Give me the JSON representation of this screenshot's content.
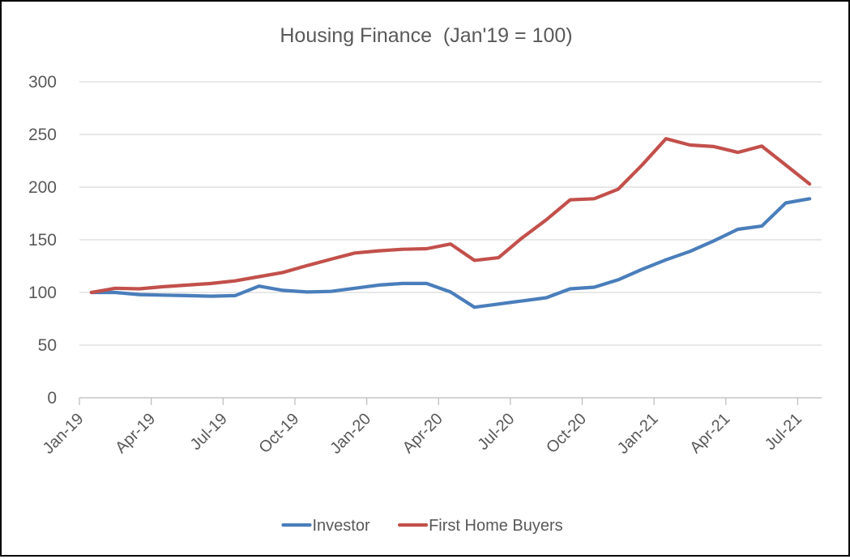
{
  "title": "Housing Finance  (Jan'19 = 100)",
  "chart_data": {
    "type": "line",
    "x": [
      "Jan-19",
      "Feb-19",
      "Mar-19",
      "Apr-19",
      "May-19",
      "Jun-19",
      "Jul-19",
      "Aug-19",
      "Sep-19",
      "Oct-19",
      "Nov-19",
      "Dec-19",
      "Jan-20",
      "Feb-20",
      "Mar-20",
      "Apr-20",
      "May-20",
      "Jun-20",
      "Jul-20",
      "Aug-20",
      "Sep-20",
      "Oct-20",
      "Nov-20",
      "Dec-20",
      "Jan-21",
      "Feb-21",
      "Mar-21",
      "Apr-21",
      "May-21",
      "Jun-21",
      "Jul-21"
    ],
    "x_tick_labels": [
      "Jan-19",
      "Apr-19",
      "Jul-19",
      "Oct-19",
      "Jan-20",
      "Apr-20",
      "Jul-20",
      "Oct-20",
      "Jan-21",
      "Apr-21",
      "Jul-21"
    ],
    "series": [
      {
        "name": "Investor",
        "color": "#4a7ebb",
        "values": [
          100,
          100,
          98,
          97.5,
          97,
          96.5,
          97,
          106,
          102,
          100.5,
          101,
          104,
          107,
          108.5,
          108.5,
          100.5,
          86,
          89,
          92,
          95,
          103.5,
          105,
          112,
          122,
          131,
          139,
          149,
          160,
          163,
          185,
          189
        ]
      },
      {
        "name": "First Home Buyers",
        "color": "#c2504b",
        "values": [
          100,
          104,
          103.5,
          105.5,
          107,
          108.5,
          111,
          115,
          119,
          125.5,
          131.5,
          137.5,
          139.5,
          141,
          141.5,
          146,
          130.5,
          133,
          152,
          169,
          188,
          189,
          198,
          221,
          246,
          240,
          238.5,
          233,
          239,
          221,
          203
        ]
      }
    ],
    "ylim": [
      0,
      300
    ],
    "yticks": [
      0,
      50,
      100,
      150,
      200,
      250,
      300
    ],
    "grid": "horizontal",
    "legend_position": "bottom",
    "text_color": "#595959",
    "gridline_color": "#d9d9d9",
    "axis_color": "#bfbfbf"
  }
}
